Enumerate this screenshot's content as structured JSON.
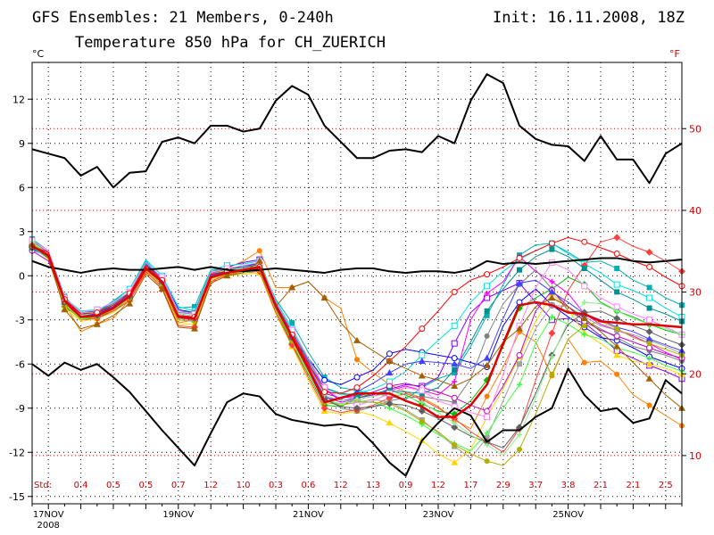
{
  "header": {
    "title_left": "GFS Ensembles: 21 Members, 0-240h",
    "title_right": "Init: 16.11.2008, 18Z",
    "subtitle": "Temperature 850 hPa for CH_ZUERICH"
  },
  "colors": {
    "mean": "#e00000",
    "envelope": "#000000",
    "grid_degC": "#000000",
    "grid_degF": "#d00000",
    "std_text": "#d00000",
    "members": [
      "#ff8000",
      "#00b0b0",
      "#7f00ff",
      "#00c000",
      "#ff00ff",
      "#0000ff",
      "#ffd700",
      "#808080",
      "#a0a0a0",
      "#00e0e0",
      "#ff4040",
      "#40ff40",
      "#c000c0",
      "#4040ff",
      "#b0b000",
      "#009090",
      "#ff80ff",
      "#606060",
      "#90ee90",
      "#ff0000",
      "#a06000"
    ]
  },
  "chart_data": {
    "type": "line",
    "title": "Temperature 850 hPa for CH_ZUERICH",
    "ylabel_left": "°C",
    "ylabel_right": "°F",
    "ylim": [
      -15.5,
      14.5
    ],
    "yticks_left": [
      12,
      9,
      6,
      3,
      0,
      -3,
      -6,
      -9,
      -12,
      -15
    ],
    "yticks_right": [
      50,
      40,
      30,
      20,
      10
    ],
    "x_hours_range": [
      0,
      240
    ],
    "xtick_labels": [
      "17NOV",
      "19NOV",
      "21NOV",
      "23NOV",
      "25NOV"
    ],
    "xtick_year": "2008",
    "xtick_hours": [
      6,
      54,
      102,
      150,
      198
    ],
    "grid": true,
    "std_label": "Std:",
    "std_hours": [
      18,
      30,
      42,
      54,
      66,
      78,
      90,
      102,
      114,
      126,
      138,
      150,
      162,
      174,
      186,
      198,
      210,
      222,
      234
    ],
    "std_values": [
      "0.4",
      "0.5",
      "0.5",
      "0.7",
      "1.2",
      "1.0",
      "0.3",
      "0.6",
      "1.2",
      "1.3",
      "0.9",
      "1.2",
      "1.7",
      "2.9",
      "3.7",
      "3.8",
      "2.1",
      "2.1",
      "2.5"
    ],
    "hours": [
      0,
      6,
      12,
      18,
      24,
      30,
      36,
      42,
      48,
      54,
      60,
      66,
      72,
      78,
      84,
      90,
      96,
      102,
      108,
      114,
      120,
      126,
      132,
      138,
      144,
      150,
      156,
      162,
      168,
      174,
      180,
      186,
      192,
      198,
      204,
      210,
      216,
      222,
      228,
      234,
      240
    ],
    "series": [
      {
        "name": "mean",
        "values": [
          2.0,
          1.4,
          -1.7,
          -2.8,
          -2.7,
          -2.2,
          -1.4,
          0.5,
          -0.4,
          -2.8,
          -2.9,
          -0.1,
          0.2,
          0.4,
          0.6,
          -2.0,
          -4.2,
          -6.3,
          -8.6,
          -8.3,
          -8.0,
          -8.0,
          -8.0,
          -8.5,
          -8.9,
          -9.6,
          -9.6,
          -8.8,
          -7.4,
          -4.6,
          -2.0,
          -1.8,
          -2.0,
          -2.5,
          -2.6,
          -3.1,
          -3.2,
          -3.3,
          -3.3,
          -3.4,
          -3.5
        ]
      },
      {
        "name": "max",
        "values": [
          8.6,
          8.3,
          8.0,
          6.8,
          7.4,
          6.0,
          7.0,
          7.1,
          9.1,
          9.4,
          9.0,
          10.2,
          10.2,
          9.8,
          10.0,
          11.9,
          12.9,
          12.3,
          10.2,
          9.1,
          8.0,
          8.0,
          8.5,
          8.6,
          8.4,
          9.5,
          9.0,
          11.9,
          13.7,
          13.1,
          10.2,
          9.3,
          8.9,
          8.8,
          7.8,
          9.5,
          7.9,
          7.9,
          6.3,
          8.3,
          9.0
        ]
      },
      {
        "name": "min",
        "values": [
          -6.0,
          -6.8,
          -5.9,
          -6.4,
          -6.0,
          -6.9,
          -7.9,
          -9.2,
          -10.5,
          -11.7,
          -12.9,
          -10.7,
          -8.6,
          -8.0,
          -8.2,
          -9.4,
          -9.8,
          -10.0,
          -10.2,
          -10.1,
          -10.3,
          -11.4,
          -12.7,
          -13.6,
          -11.2,
          -10.0,
          -9.0,
          -9.5,
          -11.3,
          -10.5,
          -10.5,
          -9.6,
          -9.0,
          -6.3,
          -8.1,
          -9.2,
          -9.0,
          -10.0,
          -9.7,
          -7.1,
          -8.0
        ]
      },
      {
        "name": "control",
        "values": [
          1.0,
          0.6,
          0.4,
          0.2,
          0.4,
          0.5,
          0.4,
          0.4,
          0.5,
          0.6,
          0.4,
          0.6,
          0.4,
          0.3,
          0.4,
          0.5,
          0.4,
          0.3,
          0.2,
          0.4,
          0.5,
          0.5,
          0.3,
          0.2,
          0.3,
          0.3,
          0.2,
          0.4,
          1.0,
          0.8,
          0.9,
          0.8,
          0.9,
          1.0,
          1.1,
          1.2,
          1.2,
          1.0,
          0.9,
          1.0,
          1.1
        ]
      }
    ],
    "members": [
      [
        2.2,
        1.5,
        -1.9,
        -3.8,
        -3.3,
        -2.9,
        -1.6,
        0.2,
        -0.6,
        -3.2,
        -3.0,
        -0.6,
        0.5,
        1.0,
        1.7,
        -0.8,
        -0.8,
        -0.4,
        -1.5,
        -2.2,
        -5.7,
        -6.6,
        -7.4,
        -7.9,
        -8.3,
        -8.9,
        -9.8,
        -10.4,
        -8.2,
        -6.2,
        -3.8,
        -4.5,
        -6.8,
        -4.3,
        -5.9,
        -5.8,
        -6.7,
        -8.1,
        -8.8,
        -9.5,
        -10.2
      ],
      [
        2.5,
        1.7,
        -1.4,
        -2.6,
        -2.5,
        -1.7,
        -0.9,
        1.0,
        -0.2,
        -2.2,
        -2.1,
        0.4,
        0.5,
        0.4,
        0.8,
        -1.6,
        -3.2,
        -5.2,
        -6.9,
        -7.6,
        -7.8,
        -8.0,
        -8.2,
        -8.4,
        -7.6,
        -7.0,
        -6.6,
        -4.8,
        -2.7,
        -0.6,
        1.4,
        2.1,
        2.2,
        1.6,
        0.9,
        1.0,
        0.5,
        -0.3,
        -0.8,
        -1.5,
        -2.0
      ],
      [
        1.9,
        1.2,
        -1.7,
        -2.6,
        -2.5,
        -2.0,
        -1.3,
        0.8,
        -0.2,
        -2.6,
        -2.7,
        0.0,
        0.6,
        0.9,
        1.1,
        -2.1,
        -4.0,
        -5.9,
        -7.7,
        -8.5,
        -8.3,
        -8.1,
        -7.7,
        -7.4,
        -7.5,
        -6.9,
        -4.6,
        -2.5,
        -1.5,
        -1.0,
        -0.5,
        -1.8,
        -3.0,
        -2.9,
        -3.2,
        -4.1,
        -5.1,
        -5.6,
        -6.1,
        -6.5,
        -7.0
      ],
      [
        2.1,
        1.3,
        -2.1,
        -2.9,
        -2.8,
        -2.4,
        -1.6,
        0.6,
        -0.5,
        -3.0,
        -3.1,
        -0.1,
        0.3,
        0.3,
        0.5,
        -2.3,
        -4.6,
        -6.7,
        -8.8,
        -8.9,
        -8.3,
        -8.0,
        -7.8,
        -8.1,
        -8.7,
        -9.2,
        -9.4,
        -8.5,
        -7.1,
        -4.8,
        -2.2,
        -1.5,
        -0.9,
        -0.1,
        -0.6,
        -1.8,
        -2.4,
        -2.8,
        -3.3,
        -3.7,
        -4.0
      ],
      [
        2.3,
        1.6,
        -1.6,
        -2.7,
        -2.8,
        -2.3,
        -1.4,
        0.4,
        -0.6,
        -2.9,
        -3.0,
        0.1,
        0.2,
        0.5,
        0.9,
        -1.9,
        -3.9,
        -6.0,
        -8.2,
        -8.6,
        -8.4,
        -8.2,
        -7.8,
        -7.5,
        -7.8,
        -8.1,
        -7.2,
        -3.0,
        -1.2,
        -0.4,
        1.3,
        0.3,
        -0.4,
        -1.2,
        -2.6,
        -3.3,
        -3.7,
        -4.1,
        -4.6,
        -5.2,
        -5.7
      ],
      [
        1.8,
        1.3,
        -1.8,
        -2.7,
        -2.5,
        -2.1,
        -1.1,
        0.7,
        -0.1,
        -2.3,
        -2.5,
        0.2,
        0.4,
        0.7,
        0.8,
        -2.2,
        -4.3,
        -5.6,
        -7.1,
        -7.4,
        -6.9,
        -6.4,
        -5.3,
        -5.0,
        -5.2,
        -5.4,
        -5.6,
        -5.9,
        -6.2,
        -3.4,
        -1.8,
        -0.9,
        -2.0,
        -2.8,
        -3.5,
        -4.2,
        -4.4,
        -4.9,
        -5.5,
        -5.9,
        -6.3
      ],
      [
        2.0,
        1.1,
        -2.2,
        -3.1,
        -2.9,
        -2.5,
        -1.6,
        0.3,
        -0.7,
        -3.3,
        -3.3,
        -0.3,
        0.0,
        0.1,
        0.2,
        -2.6,
        -4.8,
        -7.1,
        -9.2,
        -9.4,
        -9.2,
        -9.5,
        -10.0,
        -10.6,
        -11.2,
        -12.1,
        -12.7,
        -11.8,
        -9.6,
        -7.7,
        -5.5,
        -3.1,
        -1.2,
        -2.3,
        -3.9,
        -4.6,
        -5.4,
        -5.8,
        -6.0,
        -6.3,
        -6.7
      ],
      [
        2.4,
        1.5,
        -1.6,
        -2.5,
        -2.4,
        -2.0,
        -1.3,
        0.9,
        -0.2,
        -2.5,
        -2.6,
        0.3,
        0.5,
        0.6,
        0.8,
        -1.8,
        -3.8,
        -5.8,
        -8.1,
        -9.0,
        -9.2,
        -8.9,
        -8.5,
        -8.3,
        -8.2,
        -8.4,
        -8.6,
        -7.0,
        -4.1,
        -1.9,
        -0.6,
        0.4,
        -0.9,
        -2.4,
        -3.0,
        -3.6,
        -4.2,
        -4.8,
        -5.1,
        -5.4,
        -5.8
      ],
      [
        2.2,
        1.4,
        -1.9,
        -2.8,
        -2.6,
        -2.1,
        -1.3,
        0.6,
        -0.4,
        -2.8,
        -2.8,
        0.0,
        0.3,
        0.4,
        0.6,
        -2.1,
        -4.1,
        -6.3,
        -8.4,
        -8.8,
        -8.6,
        -8.4,
        -8.6,
        -9.1,
        -9.8,
        -10.7,
        -11.6,
        -12.4,
        -11.0,
        -8.5,
        -6.0,
        -3.6,
        -2.0,
        -2.1,
        -2.8,
        -3.4,
        -3.7,
        -4.0,
        -4.4,
        -4.8,
        -5.3
      ],
      [
        1.9,
        1.2,
        -1.5,
        -2.4,
        -2.3,
        -1.8,
        -0.9,
        1.1,
        0.0,
        -2.1,
        -2.4,
        0.4,
        0.7,
        0.8,
        1.0,
        -1.7,
        -3.6,
        -5.6,
        -7.6,
        -8.1,
        -8.0,
        -7.7,
        -7.2,
        -6.5,
        -5.4,
        -4.4,
        -3.4,
        -1.8,
        -0.7,
        0.3,
        1.1,
        1.7,
        2.2,
        1.5,
        0.8,
        0.2,
        -0.6,
        -1.0,
        -1.5,
        -2.2,
        -2.8
      ],
      [
        2.0,
        1.6,
        -1.8,
        -3.0,
        -2.9,
        -2.4,
        -1.7,
        0.3,
        -0.8,
        -3.4,
        -3.5,
        -0.4,
        0.1,
        0.2,
        0.3,
        -2.5,
        -4.7,
        -6.9,
        -9.0,
        -9.3,
        -9.1,
        -8.8,
        -8.3,
        -8.0,
        -8.4,
        -9.0,
        -9.7,
        -10.6,
        -11.3,
        -12.0,
        -10.4,
        -7.1,
        -3.9,
        -1.0,
        0.7,
        2.3,
        2.6,
        2.0,
        1.6,
        1.0,
        0.3
      ],
      [
        2.3,
        1.3,
        -2.0,
        -2.9,
        -2.7,
        -2.2,
        -1.4,
        0.5,
        -0.5,
        -2.9,
        -2.9,
        -0.2,
        0.2,
        0.2,
        0.4,
        -2.2,
        -4.4,
        -6.5,
        -8.5,
        -8.7,
        -8.5,
        -8.6,
        -9.0,
        -9.5,
        -10.1,
        -10.8,
        -11.4,
        -11.9,
        -10.7,
        -9.0,
        -7.4,
        -4.6,
        -2.8,
        -3.3,
        -4.0,
        -4.3,
        -4.9,
        -5.2,
        -5.6,
        -6.1,
        -6.5
      ],
      [
        1.7,
        1.0,
        -1.7,
        -2.6,
        -2.6,
        -2.1,
        -1.2,
        0.7,
        -0.3,
        -2.7,
        -2.8,
        0.1,
        0.4,
        0.6,
        0.7,
        -2.0,
        -4.0,
        -6.1,
        -8.0,
        -8.3,
        -8.2,
        -7.9,
        -7.5,
        -7.3,
        -7.6,
        -7.9,
        -8.3,
        -8.8,
        -9.2,
        -7.5,
        -5.4,
        -2.4,
        -1.0,
        -2.1,
        -3.1,
        -3.7,
        -4.1,
        -4.5,
        -4.9,
        -5.3,
        -5.6
      ],
      [
        2.1,
        1.4,
        -1.8,
        -2.7,
        -2.6,
        -2.1,
        -1.3,
        0.6,
        -0.4,
        -2.7,
        -2.8,
        0.0,
        0.3,
        0.4,
        0.6,
        -2.1,
        -4.2,
        -6.2,
        -8.3,
        -8.4,
        -7.9,
        -7.3,
        -6.6,
        -6.0,
        -5.8,
        -5.9,
        -6.0,
        -6.3,
        -5.6,
        -2.9,
        -0.5,
        -0.3,
        -1.1,
        -1.8,
        -2.6,
        -3.0,
        -3.5,
        -3.8,
        -4.3,
        -4.7,
        -5.1
      ],
      [
        2.2,
        1.2,
        -2.0,
        -3.0,
        -2.8,
        -2.3,
        -1.5,
        0.4,
        -0.6,
        -3.0,
        -3.1,
        -0.2,
        0.1,
        0.3,
        0.4,
        -2.3,
        -4.4,
        -6.5,
        -8.6,
        -8.8,
        -8.6,
        -8.6,
        -8.7,
        -9.2,
        -9.9,
        -10.6,
        -11.5,
        -12.1,
        -12.6,
        -12.9,
        -11.8,
        -9.4,
        -6.7,
        -4.3,
        -3.4,
        -3.1,
        -3.6,
        -4.2,
        -4.6,
        -5.0,
        -5.4
      ],
      [
        1.9,
        1.5,
        -1.6,
        -2.5,
        -2.4,
        -1.9,
        -1.1,
        0.8,
        -0.1,
        -2.4,
        -2.5,
        0.2,
        0.4,
        0.6,
        0.7,
        -1.9,
        -3.8,
        -5.7,
        -7.6,
        -8.0,
        -8.1,
        -8.0,
        -7.8,
        -7.9,
        -8.0,
        -7.6,
        -6.4,
        -4.5,
        -2.4,
        -0.9,
        0.4,
        1.3,
        1.8,
        1.3,
        0.5,
        -0.3,
        -1.1,
        -1.6,
        -2.2,
        -2.6,
        -3.1
      ],
      [
        2.4,
        1.7,
        -1.5,
        -2.5,
        -2.3,
        -1.8,
        -1.1,
        0.9,
        -0.1,
        -2.4,
        -2.6,
        0.2,
        0.5,
        0.7,
        0.9,
        -1.8,
        -3.7,
        -5.6,
        -7.6,
        -8.4,
        -8.8,
        -8.5,
        -8.0,
        -7.6,
        -7.8,
        -8.5,
        -8.9,
        -9.3,
        -9.6,
        -6.7,
        -3.4,
        -0.8,
        0.9,
        0.4,
        -0.7,
        -1.5,
        -2.1,
        -2.6,
        -3.0,
        -3.5,
        -4.0
      ],
      [
        2.0,
        1.3,
        -1.8,
        -2.8,
        -2.7,
        -2.2,
        -1.4,
        0.5,
        -0.4,
        -2.8,
        -2.9,
        -0.1,
        0.2,
        0.3,
        0.5,
        -2.2,
        -4.2,
        -6.3,
        -8.4,
        -8.9,
        -9.0,
        -8.9,
        -8.7,
        -8.8,
        -9.2,
        -9.7,
        -10.3,
        -10.9,
        -11.3,
        -11.7,
        -10.3,
        -8.0,
        -5.4,
        -3.3,
        -2.5,
        -2.4,
        -2.9,
        -3.4,
        -3.8,
        -4.3,
        -4.7
      ],
      [
        2.3,
        1.5,
        -1.7,
        -2.7,
        -2.5,
        -2.0,
        -1.2,
        0.7,
        -0.3,
        -2.6,
        -2.7,
        0.1,
        0.4,
        0.5,
        0.7,
        -2.0,
        -4.0,
        -6.0,
        -8.1,
        -8.5,
        -8.4,
        -8.2,
        -8.0,
        -8.2,
        -8.6,
        -9.3,
        -10.0,
        -10.8,
        -11.5,
        -12.2,
        -10.8,
        -8.3,
        -5.5,
        -3.1,
        -1.8,
        -1.9,
        -2.4,
        -2.9,
        -3.3,
        -3.6,
        -4.0
      ],
      [
        2.0,
        1.6,
        -1.6,
        -2.6,
        -2.5,
        -2.0,
        -1.2,
        0.7,
        -0.3,
        -2.7,
        -2.8,
        0.1,
        0.3,
        0.4,
        0.6,
        -2.0,
        -4.0,
        -6.0,
        -7.9,
        -8.0,
        -7.6,
        -6.8,
        -5.8,
        -4.8,
        -3.6,
        -2.4,
        -1.1,
        -0.3,
        0.1,
        0.6,
        1.2,
        1.7,
        2.2,
        2.6,
        2.3,
        1.9,
        1.5,
        1.0,
        0.6,
        -0.1,
        -0.7
      ],
      [
        2.1,
        1.2,
        -2.3,
        -3.6,
        -3.3,
        -2.7,
        -1.9,
        0.1,
        -0.9,
        -3.5,
        -3.6,
        -0.5,
        0.0,
        0.2,
        1.0,
        -2.1,
        -0.8,
        -0.4,
        -1.5,
        -3.2,
        -4.4,
        -5.1,
        -5.8,
        -6.3,
        -6.8,
        -7.1,
        -7.5,
        -7.0,
        -6.1,
        -4.5,
        -3.6,
        -2.1,
        -1.5,
        -2.1,
        -2.9,
        -3.8,
        -4.8,
        -5.9,
        -7.0,
        -8.1,
        -9.0
      ]
    ]
  }
}
